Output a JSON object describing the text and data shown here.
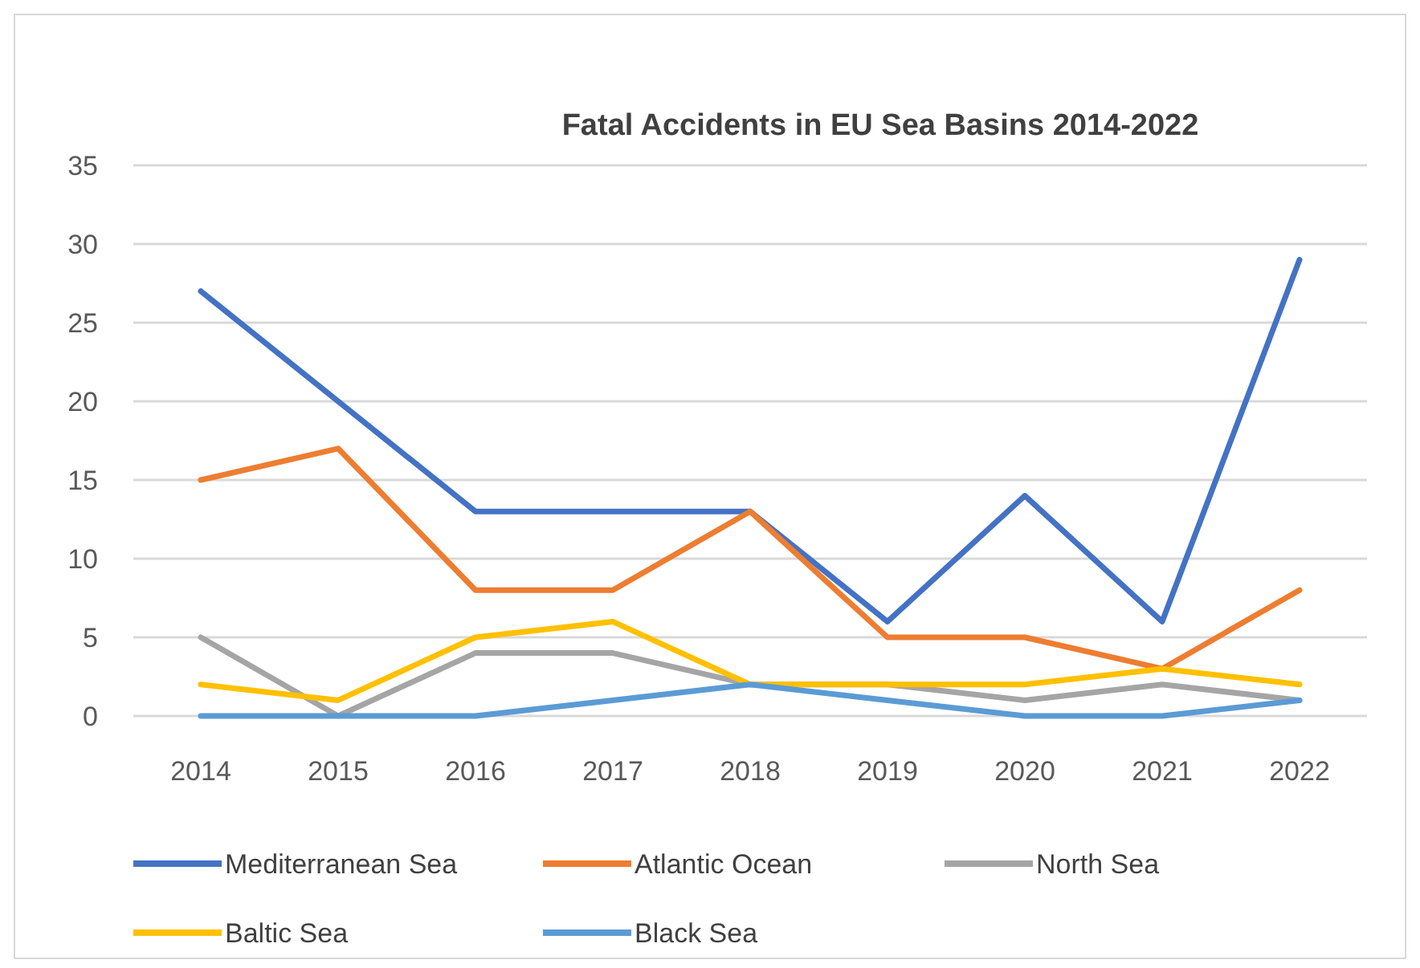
{
  "chart_data": {
    "type": "line",
    "title": "Fatal Accidents in EU Sea Basins 2014-2022",
    "categories": [
      "2014",
      "2015",
      "2016",
      "2017",
      "2018",
      "2019",
      "2020",
      "2021",
      "2022"
    ],
    "series": [
      {
        "name": "Mediterranean Sea",
        "color": "#4472c4",
        "values": [
          27,
          20,
          13,
          13,
          13,
          6,
          14,
          6,
          29
        ]
      },
      {
        "name": "Atlantic Ocean",
        "color": "#ed7d31",
        "values": [
          15,
          17,
          8,
          8,
          13,
          5,
          5,
          3,
          8
        ]
      },
      {
        "name": "North Sea",
        "color": "#a5a5a5",
        "values": [
          5,
          0,
          4,
          4,
          2,
          2,
          1,
          2,
          1
        ]
      },
      {
        "name": "Baltic Sea",
        "color": "#ffc000",
        "values": [
          2,
          1,
          5,
          6,
          2,
          2,
          2,
          3,
          2
        ]
      },
      {
        "name": "Black Sea",
        "color": "#5b9bd5",
        "values": [
          0,
          0,
          0,
          1,
          2,
          1,
          0,
          0,
          1
        ]
      }
    ],
    "ylim": [
      0,
      35
    ],
    "yticks": [
      0,
      5,
      10,
      15,
      20,
      25,
      30,
      35
    ],
    "grid": "y",
    "legend": "bottom",
    "marker": "none",
    "line_style": "solid"
  }
}
